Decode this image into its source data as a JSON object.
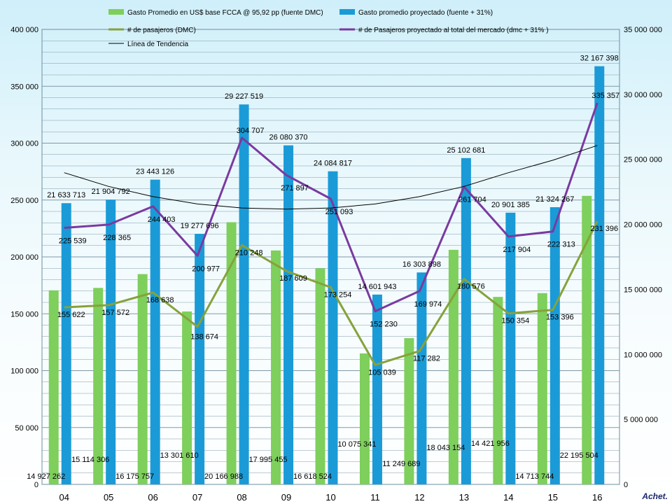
{
  "logo_text": "Achet.",
  "colors": {
    "gasto": "#7ecf5c",
    "proyectado": "#1a9bd7",
    "pasajeros": "#86a23a",
    "pasajeros_total": "#7a3aa0",
    "tendencia": "#000000"
  },
  "chart_data": {
    "type": "bar",
    "categories": [
      "04",
      "05",
      "06",
      "07",
      "08",
      "09",
      "10",
      "11",
      "12",
      "13",
      "14",
      "15",
      "16"
    ],
    "y_left": {
      "min": 0,
      "max": 400000,
      "ticks": [
        "0",
        "50 000",
        "100 000",
        "150 000",
        "200 000",
        "250 000",
        "300 000",
        "350 000",
        "400 000"
      ]
    },
    "y_right": {
      "min": 0,
      "max": 35000000,
      "ticks": [
        "0",
        "5 000 000",
        "10 000 000",
        "15 000 000",
        "20 000 000",
        "25 000 000",
        "30 000 000",
        "35 000 000"
      ]
    },
    "grid": true,
    "legend_position": "top",
    "series": [
      {
        "name": "Gasto Promedio en US$ base FCCA @ 95,92 pp (fuente DMC)",
        "kind": "bar",
        "axis": "right",
        "values": [
          14927262,
          15114306,
          16175757,
          13301610,
          20166988,
          17995455,
          16618524,
          10075341,
          11249689,
          18043154,
          14421956,
          14713744,
          22195504
        ],
        "labels": [
          "14 927 262",
          "15 114 306",
          "16 175 757",
          "13 301 610",
          "20 166 988",
          "17 995 455",
          "16 618 524",
          "10 075 341",
          "11 249 689",
          "18 043 154",
          "14 421 956",
          "14 713 744",
          "22 195 504"
        ]
      },
      {
        "name": "Gasto promedio proyectado (fuente + 31%)",
        "kind": "bar",
        "axis": "right",
        "values": [
          21633713,
          21904792,
          23443126,
          19277696,
          29227519,
          26080370,
          24084817,
          14601943,
          16303898,
          25102681,
          20901385,
          21324267,
          32167398
        ],
        "labels": [
          "21 633 713",
          "21 904 792",
          "23 443 126",
          "19 277 696",
          "29 227 519",
          "26 080 370",
          "24 084 817",
          "14 601 943",
          "16 303 898",
          "25 102 681",
          "20 901 385",
          "21 324 267",
          "32 167 398"
        ]
      },
      {
        "name": "# de pasajeros (DMC)",
        "kind": "line",
        "axis": "left",
        "values": [
          155622,
          157572,
          168638,
          138674,
          210248,
          187609,
          173254,
          105039,
          117282,
          180576,
          150354,
          153396,
          231396
        ],
        "labels": [
          "155 622",
          "157 572",
          "168 638",
          "138 674",
          "210 248",
          "187 609",
          "173 254",
          "105 039",
          "117 282",
          "180 576",
          "150 354",
          "153 396",
          "231 396"
        ]
      },
      {
        "name": "# de Pasajeros proyectado al total del mercado (dmc + 31% )",
        "kind": "line",
        "axis": "left",
        "values": [
          225539,
          228365,
          244403,
          200977,
          304707,
          271897,
          251093,
          152230,
          169974,
          261704,
          217904,
          222313,
          335357
        ],
        "labels": [
          "225 539",
          "228 365",
          "244 403",
          "200 977",
          "304 707",
          "271 897",
          "251 093",
          "152 230",
          "169 974",
          "261 704",
          "217 904",
          "222 313",
          "335 357"
        ]
      },
      {
        "name": "Línea de Tendencia",
        "kind": "trend",
        "axis": "left",
        "values": [
          274000,
          262000,
          253000,
          246500,
          243000,
          242000,
          243000,
          246500,
          253000,
          262000,
          274000,
          285000,
          298000
        ]
      }
    ]
  }
}
